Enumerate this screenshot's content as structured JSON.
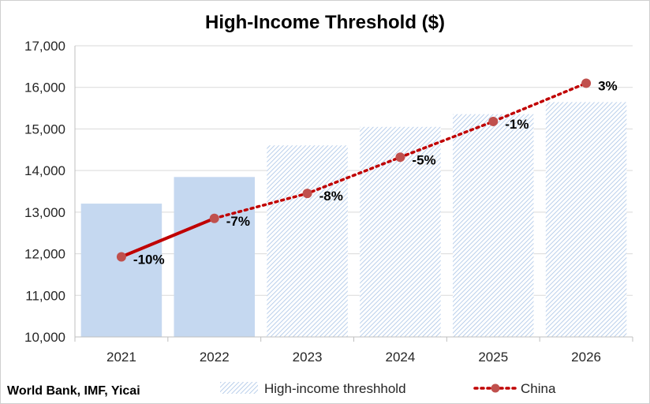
{
  "chart_data": {
    "type": "bar",
    "title": "High-Income Threshold ($)",
    "categories": [
      "2021",
      "2022",
      "2023",
      "2024",
      "2025",
      "2026"
    ],
    "ylim": [
      10000,
      17000
    ],
    "yticks": [
      "10,000",
      "11,000",
      "12,000",
      "13,000",
      "14,000",
      "15,000",
      "16,000",
      "17,000"
    ],
    "grid": true,
    "legend_position": "bottom",
    "series": [
      {
        "name": "High-income threshhold",
        "type": "bar",
        "values": [
          13205,
          13845,
          14605,
          15050,
          15355,
          15645
        ],
        "projected": [
          false,
          false,
          true,
          true,
          true,
          true
        ],
        "color": "#c5d8f0"
      },
      {
        "name": "China",
        "type": "line",
        "values": [
          11925,
          12850,
          13450,
          14320,
          15180,
          16100
        ],
        "labels": [
          "-10%",
          "-7%",
          "-8%",
          "-5%",
          "-1%",
          "3%"
        ],
        "color": "#c0504d",
        "solid_color": "#c00000"
      }
    ]
  },
  "source": "World Bank, IMF, Yicai"
}
